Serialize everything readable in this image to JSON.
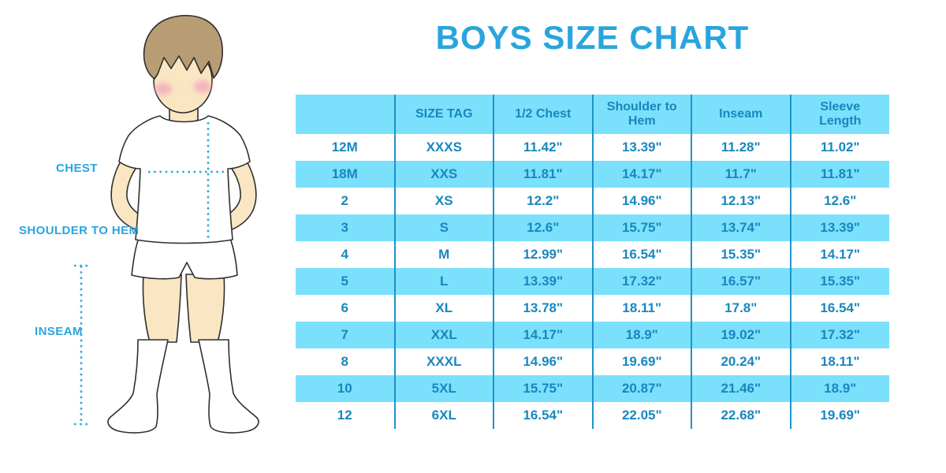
{
  "title": "BOYS SIZE CHART",
  "labels": {
    "chest": "CHEST",
    "shoulder_to_hem": "SHOULDER TO HEM",
    "inseam": "INSEAM"
  },
  "table": {
    "columns": [
      "",
      "SIZE TAG",
      "1/2 Chest",
      "Shoulder to Hem",
      "Inseam",
      "Sleeve Length"
    ],
    "rows": [
      [
        "12M",
        "XXXS",
        "11.42\"",
        "13.39\"",
        "11.28\"",
        "11.02\""
      ],
      [
        "18M",
        "XXS",
        "11.81\"",
        "14.17\"",
        "11.7\"",
        "11.81\""
      ],
      [
        "2",
        "XS",
        "12.2\"",
        "14.96\"",
        "12.13\"",
        "12.6\""
      ],
      [
        "3",
        "S",
        "12.6\"",
        "15.75\"",
        "13.74\"",
        "13.39\""
      ],
      [
        "4",
        "M",
        "12.99\"",
        "16.54\"",
        "15.35\"",
        "14.17\""
      ],
      [
        "5",
        "L",
        "13.39\"",
        "17.32\"",
        "16.57\"",
        "15.35\""
      ],
      [
        "6",
        "XL",
        "13.78\"",
        "18.11\"",
        "17.8\"",
        "16.54\""
      ],
      [
        "7",
        "XXL",
        "14.17\"",
        "18.9\"",
        "19.02\"",
        "17.32\""
      ],
      [
        "8",
        "XXXL",
        "14.96\"",
        "19.69\"",
        "20.24\"",
        "18.11\""
      ],
      [
        "10",
        "5XL",
        "15.75\"",
        "20.87\"",
        "21.46\"",
        "18.9\""
      ],
      [
        "12",
        "6XL",
        "16.54\"",
        "22.05\"",
        "22.68\"",
        "19.69\""
      ]
    ]
  },
  "colors": {
    "accent_blue": "#29a5de",
    "row_fill": "#7be0fc",
    "table_text": "#1987be",
    "divider": "#1e93c8",
    "dotted_line": "#29abe2",
    "skin": "#fae6c2",
    "hair": "#b89c74"
  }
}
